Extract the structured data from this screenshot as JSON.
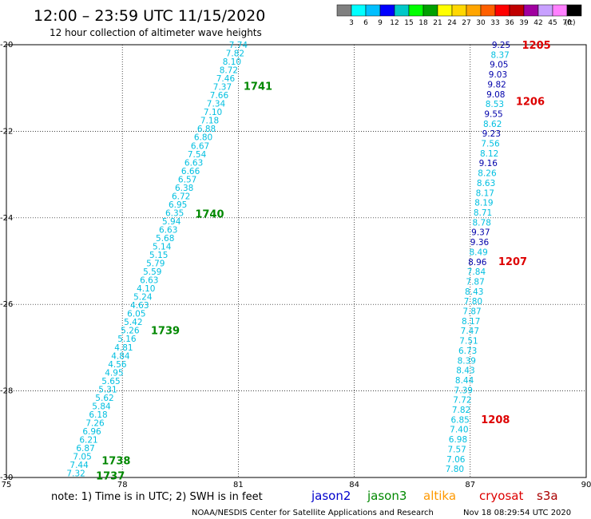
{
  "header": {
    "title": "12:00 – 23:59 UTC 11/15/2020",
    "subtitle": "12 hour collection of altimeter wave heights"
  },
  "colorbar": {
    "unit": "(ft)",
    "levels": [
      "3",
      "6",
      "9",
      "12",
      "15",
      "18",
      "21",
      "24",
      "27",
      "30",
      "33",
      "36",
      "39",
      "42",
      "45",
      "70"
    ],
    "colors": [
      "#808080",
      "#00ffff",
      "#00bfff",
      "#0000ff",
      "#00c8c8",
      "#00ff00",
      "#00a000",
      "#ffff00",
      "#ffd700",
      "#ffa500",
      "#ff6000",
      "#ff0000",
      "#c00000",
      "#a000a0",
      "#c8a0ff",
      "#ff80ff",
      "#000000"
    ]
  },
  "note": "note:  1) Time is in UTC; 2) SWH is in feet",
  "satellites": [
    {
      "name": "jason2",
      "color": "#0000cc"
    },
    {
      "name": "jason3",
      "color": "#008800"
    },
    {
      "name": "altika",
      "color": "#ff9900"
    },
    {
      "name": "cryosat",
      "color": "#dd0000"
    },
    {
      "name": "s3a",
      "color": "#aa0000"
    }
  ],
  "footer": {
    "left": "NOAA/NESDIS Center for Satellite Applications and Research",
    "right": "Nov 18 08:29:54 UTC 2020"
  },
  "chart_data": {
    "type": "scatter",
    "xlim": [
      75,
      90
    ],
    "ylim": [
      -30,
      -20
    ],
    "xticks": [
      "75",
      "78",
      "81",
      "84",
      "87",
      "90"
    ],
    "yticks": [
      "-20",
      "-22",
      "-24",
      "-26",
      "-28",
      "-30"
    ],
    "grid": true,
    "series": [
      {
        "name": "jason3",
        "color": "#00bfe0",
        "label_color": "#008800",
        "x_start": 81.0,
        "y_start": -20.0,
        "x_end": 76.8,
        "y_end": -29.9,
        "values": [
          "7.74",
          "7.82",
          "8.10",
          "8.72",
          "7.46",
          "7.37",
          "7.66",
          "7.34",
          "7.10",
          "7.18",
          "6.88",
          "6.80",
          "6.67",
          "7.54",
          "6.63",
          "6.66",
          "6.57",
          "6.38",
          "6.72",
          "6.95",
          "6.35",
          "5.94",
          "6.63",
          "5.68",
          "5.14",
          "5.15",
          "5.79",
          "5.59",
          "6.63",
          "4.10",
          "5.24",
          "4.63",
          "6.05",
          "5.42",
          "5.26",
          "5.16",
          "4.81",
          "4.84",
          "4.56",
          "4.95",
          "5.65",
          "5.31",
          "5.62",
          "5.84",
          "6.18",
          "7.26",
          "6.96",
          "6.21",
          "6.87",
          "7.05",
          "7.44",
          "7.32"
        ],
        "time_labels": [
          {
            "text": "1741",
            "lat": -20.95
          },
          {
            "text": "1740",
            "lat": -23.9
          },
          {
            "text": "1739",
            "lat": -26.6
          },
          {
            "text": "1738",
            "lat": -29.6
          },
          {
            "text": "1737",
            "lat": -29.95
          }
        ]
      },
      {
        "name": "cryosat",
        "color": "#00bfe0",
        "label_color": "#dd0000",
        "x_start": 87.8,
        "y_start": -20.0,
        "x_end": 86.6,
        "y_end": -29.8,
        "values": [
          "9.25",
          "8.37",
          "9.05",
          "9.03",
          "9.82",
          "9.08",
          "8.53",
          "9.55",
          "8.62",
          "9.23",
          "7.56",
          "8.12",
          "9.16",
          "8.26",
          "8.63",
          "8.17",
          "8.19",
          "8.71",
          "8.78",
          "9.37",
          "9.36",
          "8.49",
          "8.96",
          "7.84",
          "7.87",
          "8.43",
          "7.80",
          "7.87",
          "8.17",
          "7.47",
          "7.51",
          "6.73",
          "8.39",
          "8.43",
          "8.44",
          "7.39",
          "7.72",
          "7.82",
          "6.85",
          "7.40",
          "6.98",
          "7.57",
          "7.06",
          "7.80"
        ],
        "high_values": [
          "9.25",
          "9.05",
          "9.03",
          "9.82",
          "9.08",
          "9.55",
          "9.23",
          "9.16",
          "9.37",
          "9.36",
          "8.96"
        ],
        "time_labels": [
          {
            "text": "1205",
            "lat": -20.0
          },
          {
            "text": "1206",
            "lat": -21.3
          },
          {
            "text": "1207",
            "lat": -25.0
          },
          {
            "text": "1208",
            "lat": -28.65
          }
        ]
      }
    ]
  }
}
